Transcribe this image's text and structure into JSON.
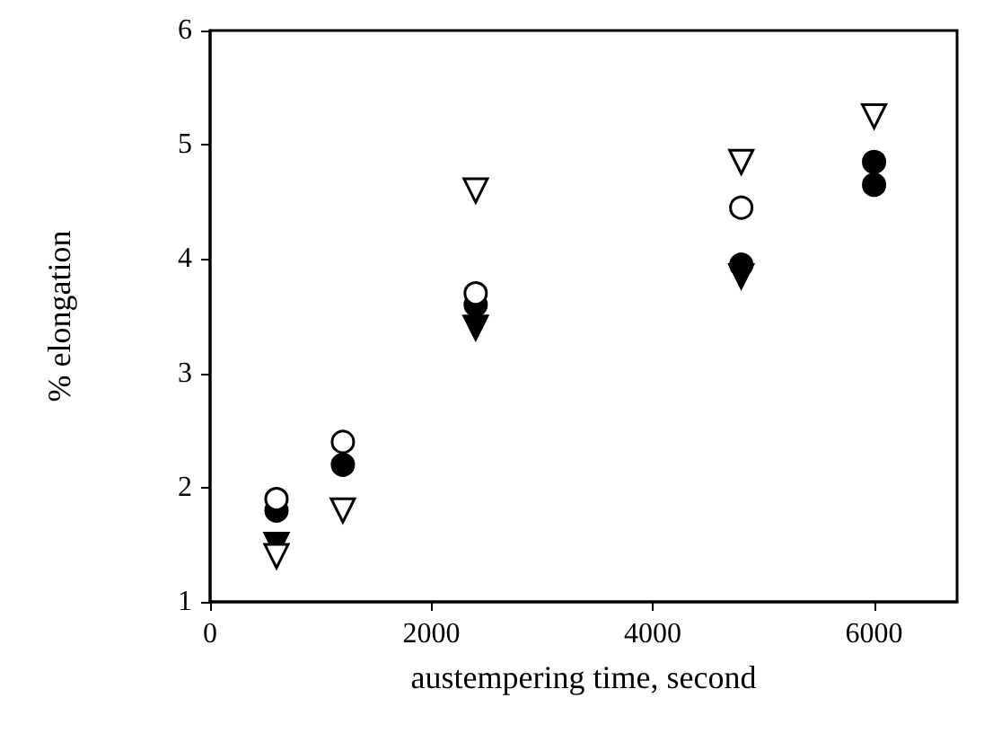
{
  "chart_data": {
    "type": "scatter",
    "xlabel": "austempering time, second",
    "ylabel": "% elongation",
    "x": [
      600,
      1200,
      2400,
      4800,
      6000
    ],
    "series": [
      {
        "color": "#000000",
        "marker": "triangle",
        "values": [
          1.5,
          null,
          3.4,
          3.85,
          null
        ]
      },
      {
        "color": "#ffffff",
        "marker": "triangle",
        "values": [
          1.4,
          1.8,
          4.6,
          4.85,
          5.25
        ]
      },
      {
        "color": "#000000",
        "marker": "circle",
        "x": [
          600,
          1200,
          2400,
          4800,
          6000,
          6000
        ],
        "values": [
          1.8,
          2.2,
          3.6,
          3.95,
          4.65,
          4.85
        ]
      },
      {
        "color": "#ffffff",
        "marker": "circle",
        "values": [
          1.9,
          2.4,
          3.7,
          4.45,
          null
        ]
      }
    ],
    "xlim": [
      0,
      6750
    ],
    "xticks": [
      0,
      2000,
      4000,
      6000
    ],
    "ylim": [
      1,
      6
    ],
    "yticks": [
      1,
      2,
      3,
      4,
      5,
      6
    ],
    "grid": false
  }
}
